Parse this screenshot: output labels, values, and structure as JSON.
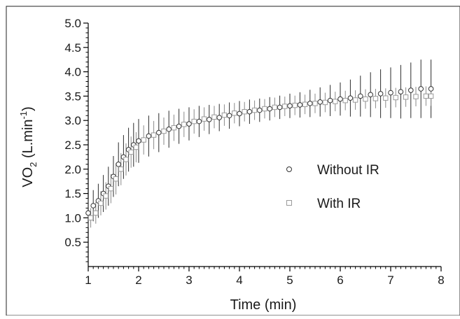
{
  "chart_data": {
    "type": "scatter",
    "xlabel": "Time (min)",
    "ylabel_main": "VO",
    "ylabel_sub": "2",
    "ylabel_unit": " (L.min",
    "ylabel_sup": "-1",
    "ylabel_close": ")",
    "xlim": [
      1,
      8
    ],
    "ylim": [
      0,
      5.0
    ],
    "x_ticks": [
      1,
      2,
      3,
      4,
      5,
      6,
      7,
      8
    ],
    "x_tick_labels": [
      "1",
      "2",
      "3",
      "4",
      "5",
      "6",
      "7",
      "8"
    ],
    "y_ticks": [
      0.5,
      1.0,
      1.5,
      2.0,
      2.5,
      3.0,
      3.5,
      4.0,
      4.5,
      5.0
    ],
    "y_tick_labels": [
      "0.5",
      "1.0",
      "1.5",
      "2.0",
      "2.5",
      "3.0",
      "3.5",
      "4.0",
      "4.5",
      "5.0"
    ],
    "grid": false,
    "legend_position": "center-right",
    "series": [
      {
        "name": "Without IR",
        "marker": "circle",
        "color": "#333333",
        "x": [
          1.0,
          1.1,
          1.2,
          1.3,
          1.4,
          1.5,
          1.6,
          1.7,
          1.8,
          1.9,
          2.0,
          2.2,
          2.4,
          2.6,
          2.8,
          3.0,
          3.2,
          3.4,
          3.6,
          3.8,
          4.0,
          4.2,
          4.4,
          4.6,
          4.8,
          5.0,
          5.2,
          5.4,
          5.6,
          5.8,
          6.0,
          6.2,
          6.4,
          6.6,
          6.8,
          7.0,
          7.2,
          7.4,
          7.6,
          7.8
        ],
        "y": [
          1.1,
          1.25,
          1.35,
          1.5,
          1.65,
          1.85,
          2.1,
          2.25,
          2.4,
          2.5,
          2.58,
          2.68,
          2.75,
          2.82,
          2.88,
          2.93,
          2.98,
          3.02,
          3.06,
          3.1,
          3.14,
          3.18,
          3.21,
          3.24,
          3.27,
          3.3,
          3.32,
          3.35,
          3.38,
          3.41,
          3.44,
          3.46,
          3.5,
          3.53,
          3.55,
          3.57,
          3.59,
          3.62,
          3.65,
          3.65
        ],
        "err": [
          0.3,
          0.32,
          0.35,
          0.38,
          0.4,
          0.42,
          0.45,
          0.45,
          0.45,
          0.45,
          0.45,
          0.42,
          0.4,
          0.38,
          0.36,
          0.34,
          0.32,
          0.3,
          0.28,
          0.27,
          0.26,
          0.25,
          0.24,
          0.24,
          0.24,
          0.25,
          0.26,
          0.28,
          0.3,
          0.32,
          0.34,
          0.38,
          0.42,
          0.46,
          0.5,
          0.52,
          0.55,
          0.57,
          0.6,
          0.6
        ]
      },
      {
        "name": "With IR",
        "marker": "square",
        "color": "#9a9a9a",
        "x": [
          1.05,
          1.15,
          1.25,
          1.35,
          1.45,
          1.55,
          1.65,
          1.75,
          1.85,
          1.95,
          2.1,
          2.3,
          2.5,
          2.7,
          2.9,
          3.1,
          3.3,
          3.5,
          3.7,
          3.9,
          4.1,
          4.3,
          4.5,
          4.7,
          4.9,
          5.1,
          5.3,
          5.5,
          5.7,
          5.9,
          6.1,
          6.3,
          6.5,
          6.7,
          6.9,
          7.1,
          7.3,
          7.5,
          7.7,
          7.8
        ],
        "y": [
          1.0,
          1.1,
          1.3,
          1.45,
          1.6,
          1.8,
          2.0,
          2.2,
          2.35,
          2.45,
          2.6,
          2.7,
          2.78,
          2.85,
          2.92,
          2.98,
          3.03,
          3.07,
          3.11,
          3.15,
          3.18,
          3.21,
          3.24,
          3.27,
          3.29,
          3.31,
          3.33,
          3.35,
          3.37,
          3.39,
          3.41,
          3.42,
          3.44,
          3.45,
          3.46,
          3.47,
          3.48,
          3.49,
          3.5,
          3.5
        ],
        "err": [
          0.2,
          0.22,
          0.25,
          0.28,
          0.3,
          0.32,
          0.33,
          0.33,
          0.32,
          0.31,
          0.3,
          0.29,
          0.28,
          0.27,
          0.26,
          0.25,
          0.24,
          0.23,
          0.22,
          0.21,
          0.2,
          0.2,
          0.2,
          0.2,
          0.2,
          0.2,
          0.2,
          0.2,
          0.2,
          0.2,
          0.2,
          0.2,
          0.2,
          0.2,
          0.2,
          0.2,
          0.2,
          0.2,
          0.2,
          0.2
        ]
      }
    ]
  }
}
